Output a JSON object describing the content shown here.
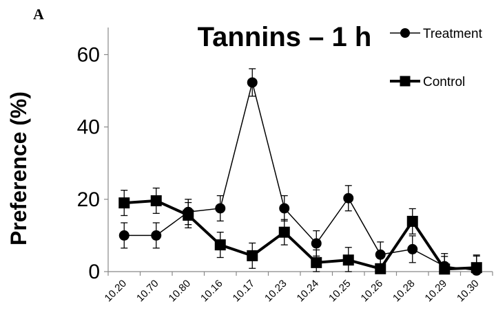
{
  "panel_label": "A",
  "chart_data": {
    "type": "line",
    "title": "Tannins – 1 h",
    "xlabel": "",
    "ylabel": "Preference (%)",
    "ylim": [
      0,
      60
    ],
    "yticks": [
      0,
      20,
      40,
      60
    ],
    "categories": [
      "10.20",
      "10.70",
      "10.80",
      "10.16",
      "10.17",
      "10.23",
      "10.24",
      "10.25",
      "10.26",
      "10.28",
      "10.29",
      "10.30"
    ],
    "legend_position": "top-right",
    "grid": false,
    "series": [
      {
        "name": "Treatment",
        "marker": "circle",
        "line": "thin",
        "color": "#000000",
        "values": [
          10.0,
          10.0,
          16.5,
          17.5,
          52.3,
          17.5,
          7.8,
          20.3,
          4.7,
          6.2,
          1.5,
          0.3
        ],
        "errors": [
          3.5,
          3.5,
          3.5,
          3.5,
          3.8,
          3.5,
          3.5,
          3.5,
          3.5,
          3.7,
          3.5,
          4.0
        ]
      },
      {
        "name": "Control",
        "marker": "square",
        "line": "thick",
        "color": "#000000",
        "values": [
          19.0,
          19.6,
          15.6,
          7.4,
          4.4,
          10.9,
          2.5,
          3.2,
          0.8,
          13.9,
          0.7,
          1.1
        ],
        "errors": [
          3.5,
          3.5,
          3.5,
          3.5,
          3.5,
          3.5,
          3.5,
          3.5,
          3.5,
          3.5,
          3.5,
          3.5
        ]
      }
    ]
  }
}
